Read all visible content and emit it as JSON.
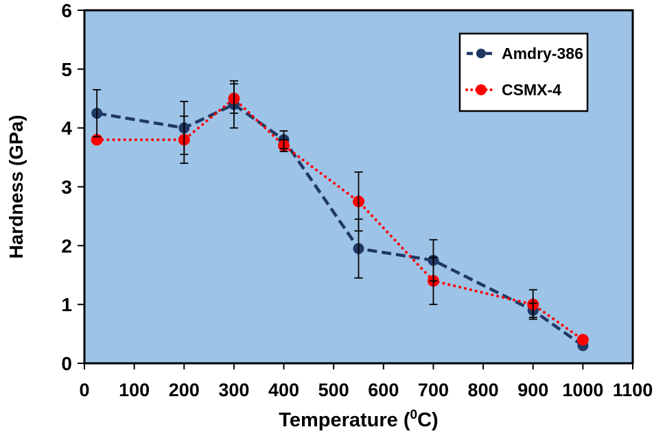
{
  "chart_data": {
    "type": "line",
    "title": "",
    "xlabel": "Temperature (⁰C)",
    "ylabel": "Hardness (GPa)",
    "xlim": [
      0,
      1100
    ],
    "ylim": [
      0,
      6
    ],
    "xticks": [
      0,
      100,
      200,
      300,
      400,
      500,
      600,
      700,
      800,
      900,
      1000,
      1100
    ],
    "yticks": [
      0,
      1,
      2,
      3,
      4,
      5,
      6
    ],
    "grid": false,
    "legend_position": "top-right",
    "plot_background_color": "#9DC3E6",
    "error_bar_color": "#000000",
    "x": [
      25,
      200,
      300,
      400,
      550,
      700,
      900,
      1000
    ],
    "series": [
      {
        "name": "Amdry-386",
        "color": "#1F3864",
        "line_style": "dashed",
        "marker": "circle",
        "values": [
          4.25,
          4.0,
          4.4,
          3.8,
          1.95,
          1.75,
          0.9,
          0.3
        ],
        "errors": [
          0.4,
          0.45,
          0.4,
          0.15,
          0.5,
          0.35,
          0.12,
          0.0
        ]
      },
      {
        "name": "CSMX-4",
        "color": "#FF0000",
        "line_style": "dotted",
        "marker": "circle",
        "values": [
          3.8,
          3.8,
          4.5,
          3.7,
          2.75,
          1.4,
          1.0,
          0.4
        ],
        "errors": [
          0.0,
          0.4,
          0.25,
          0.1,
          0.5,
          0.4,
          0.25,
          0.0
        ]
      }
    ]
  }
}
